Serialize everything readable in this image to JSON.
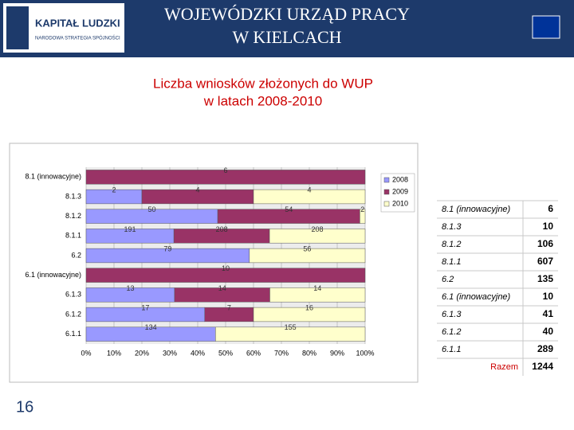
{
  "header": {
    "logo_title": "KAPITAŁ LUDZKI",
    "logo_subtitle": "NARODOWA STRATEGIA SPÓJNOŚCI",
    "title_line1": "WOJEWÓDZKI URZĄD PRACY",
    "title_line2": "W KIELCACH"
  },
  "chart_data": {
    "type": "bar",
    "orientation": "horizontal",
    "stacking": "percent",
    "title_line1": "Liczba wniosków złożonych do WUP",
    "title_line2": "w latach 2008-2010",
    "categories": [
      "8.1 (innowacyjne)",
      "8.1.3",
      "8.1.2",
      "8.1.1",
      "6.2",
      "6.1 (innowacyjne)",
      "6.1.3",
      "6.1.2",
      "6.1.1"
    ],
    "series": [
      {
        "name": "2008",
        "color": "#9999ff",
        "values": [
          0,
          2,
          50,
          191,
          79,
          0,
          13,
          17,
          134
        ]
      },
      {
        "name": "2009",
        "color": "#993366",
        "values": [
          6,
          4,
          54,
          208,
          0,
          10,
          14,
          7,
          0
        ]
      },
      {
        "name": "2010",
        "color": "#ffffcc",
        "values": [
          0,
          4,
          2,
          208,
          56,
          0,
          14,
          16,
          155
        ]
      }
    ],
    "xlim": [
      0,
      100
    ],
    "xticks": [
      {
        "value": 0,
        "label": "0%"
      },
      {
        "value": 10,
        "label": "10%"
      },
      {
        "value": 20,
        "label": "20%"
      },
      {
        "value": 30,
        "label": "30%"
      },
      {
        "value": 40,
        "label": "40%"
      },
      {
        "value": 50,
        "label": "50%"
      },
      {
        "value": 60,
        "label": "60%"
      },
      {
        "value": 70,
        "label": "70%"
      },
      {
        "value": 80,
        "label": "80%"
      },
      {
        "value": 90,
        "label": "90%"
      },
      {
        "value": 100,
        "label": "100%"
      }
    ],
    "grid": true,
    "legend": "top-right"
  },
  "table": {
    "rows": [
      [
        "8.1 (innowacyjne)",
        6
      ],
      [
        "8.1.3",
        10
      ],
      [
        "8.1.2",
        106
      ],
      [
        "8.1.1",
        607
      ],
      [
        "6.2",
        135
      ],
      [
        "6.1 (innowacyjne)",
        10
      ],
      [
        "6.1.3",
        41
      ],
      [
        "6.1.2",
        40
      ],
      [
        "6.1.1",
        289
      ]
    ],
    "total_label": "Razem",
    "total": 1244
  },
  "page_number": "16"
}
